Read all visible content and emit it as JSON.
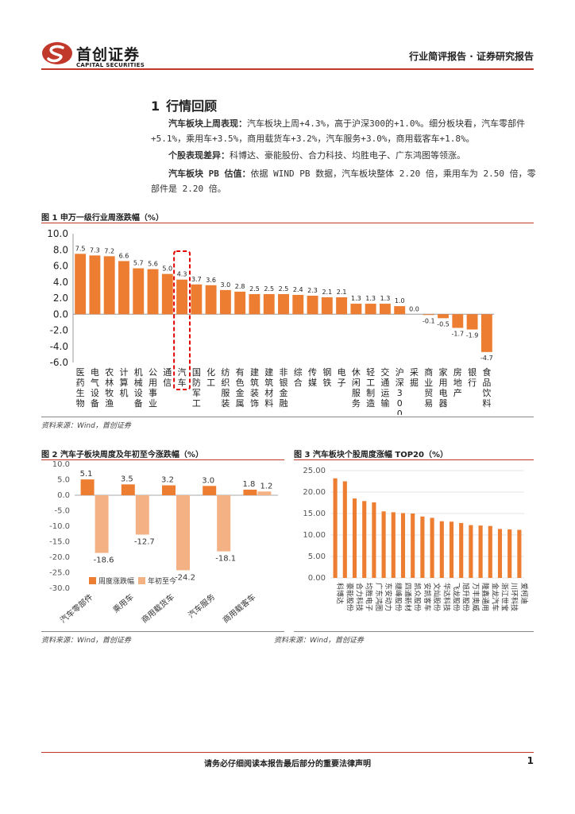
{
  "header": {
    "logo_cn": "首创证券",
    "logo_en": "CAPITAL SECURITIES",
    "title": "行业简评报告 · 证券研究报告",
    "brand_color": "#c0392b"
  },
  "section": {
    "number": "1",
    "title": "行情回顾",
    "paragraphs": [
      {
        "lead": "汽车板块上周表现：",
        "text": "汽车板块上周+4.3%，高于沪深300的+1.0%。细分板块看，汽车零部件+5.1%，乘用车+3.5%，商用载货车+3.2%，汽车服务+3.0%，商用载客车+1.8%。"
      },
      {
        "lead": "个股表现差异：",
        "text": "科博达、豪能股份、合力科技、均胜电子、广东鸿图等领涨。"
      },
      {
        "lead": "汽车板块 PB 估值：",
        "text": "依据 WIND PB 数据，汽车板块整体 2.20 倍，乘用车为 2.50 倍，零部件是 2.20 倍。"
      }
    ]
  },
  "figures": {
    "fig1_caption": "图 1 申万一级行业周涨跌幅（%）",
    "fig2_caption": "图 2 汽车子板块周度及年初至今涨跌幅（%）",
    "fig3_caption": "图 3 汽车板块个股周度涨幅 TOP20（%）",
    "source": "资料来源：Wind，首创证券"
  },
  "chart_data": [
    {
      "type": "bar",
      "id": "fig1",
      "color": "#ed7d31",
      "highlight_category": "汽车",
      "ylim": [
        -6.0,
        10.0
      ],
      "yticks": [
        "10.0",
        "8.0",
        "6.0",
        "4.0",
        "2.0",
        "0.0",
        "-2.0",
        "-4.0",
        "-6.0"
      ],
      "categories": [
        "医药生物",
        "电气设备",
        "农林牧渔",
        "计算机",
        "机械设备",
        "公用事业",
        "通信",
        "汽车",
        "国防军工",
        "化工",
        "纺织服装",
        "有色金属",
        "建筑装饰",
        "建筑材料",
        "非银金融",
        "综合",
        "传媒",
        "钢铁",
        "电子",
        "休闲服务",
        "轻工制造",
        "交通运输",
        "沪深300",
        "采掘",
        "商业贸易",
        "家用电器",
        "房地产",
        "银行",
        "食品饮料"
      ],
      "values": [
        7.5,
        7.3,
        7.2,
        6.6,
        5.7,
        5.6,
        5.0,
        4.3,
        3.7,
        3.6,
        3.0,
        2.8,
        2.5,
        2.5,
        2.5,
        2.4,
        2.3,
        2.1,
        2.1,
        1.3,
        1.3,
        1.3,
        1.0,
        0.0,
        -0.1,
        -0.5,
        -1.7,
        -1.9,
        -4.7
      ],
      "labels": [
        "7.5",
        "7.3",
        "7.2",
        "6.6",
        "5.7",
        "5.6",
        "5.0",
        "4.3",
        "3.7",
        "3.6",
        "3.0",
        "2.8",
        "2.5",
        "2.5",
        "2.5",
        "2.4",
        "2.3",
        "2.1",
        "2.1",
        "1.3",
        "1.3",
        "1.3",
        "1.0",
        "0.0",
        "-0.1",
        "-0.5",
        "-1.7",
        "-1.9",
        "-4.7"
      ]
    },
    {
      "type": "bar",
      "id": "fig2",
      "ylim": [
        -30.0,
        10.0
      ],
      "yticks": [
        "10.0",
        "5.0",
        "0.0",
        "-5.0",
        "-10.0",
        "-15.0",
        "-20.0",
        "-25.0",
        "-30.0"
      ],
      "categories": [
        "汽车零部件",
        "乘用车",
        "商用载货车",
        "汽车服务",
        "商用载客车"
      ],
      "series": [
        {
          "name": "周度涨跌幅",
          "color": "#ed7d31",
          "values": [
            5.1,
            3.5,
            3.2,
            3.0,
            1.8
          ],
          "labels": [
            "5.1",
            "3.5",
            "3.2",
            "3.0",
            "1.8"
          ]
        },
        {
          "name": "年初至今",
          "color": "#f4b183",
          "values": [
            -18.6,
            -12.7,
            -24.2,
            -18.1,
            1.2
          ],
          "labels": [
            "-18.6",
            "-12.7",
            "-24.2",
            "-18.1",
            "1.2"
          ]
        }
      ],
      "legend": "bottom"
    },
    {
      "type": "bar",
      "id": "fig3",
      "color": "#ed7d31",
      "ylim": [
        0,
        25
      ],
      "yticks": [
        "25.00",
        "20.00",
        "15.00",
        "10.00",
        "5.00",
        "0.00"
      ],
      "categories": [
        "科博达",
        "豪能股份",
        "合力科技",
        "均胜电子",
        "广东鸿图",
        "东安动力",
        "继峰股份",
        "四通新材",
        "凯众股份",
        "安凯客车",
        "文灿股份",
        "华达科技",
        "飞龙股份",
        "旭升股份",
        "万丰奥威",
        "隆鑫通用",
        "金龙汽车",
        "浙江世宝",
        "川环科技",
        "爱柯迪"
      ],
      "values": [
        23.2,
        22.5,
        18.5,
        17.9,
        17.6,
        15.5,
        15.3,
        15.1,
        15.0,
        14.3,
        14.0,
        13.2,
        13.1,
        12.8,
        12.3,
        12.2,
        12.1,
        11.4,
        11.3,
        11.2
      ]
    }
  ],
  "footer": {
    "note": "请务必仔细阅读本报告最后部分的重要法律声明",
    "page": "1"
  }
}
